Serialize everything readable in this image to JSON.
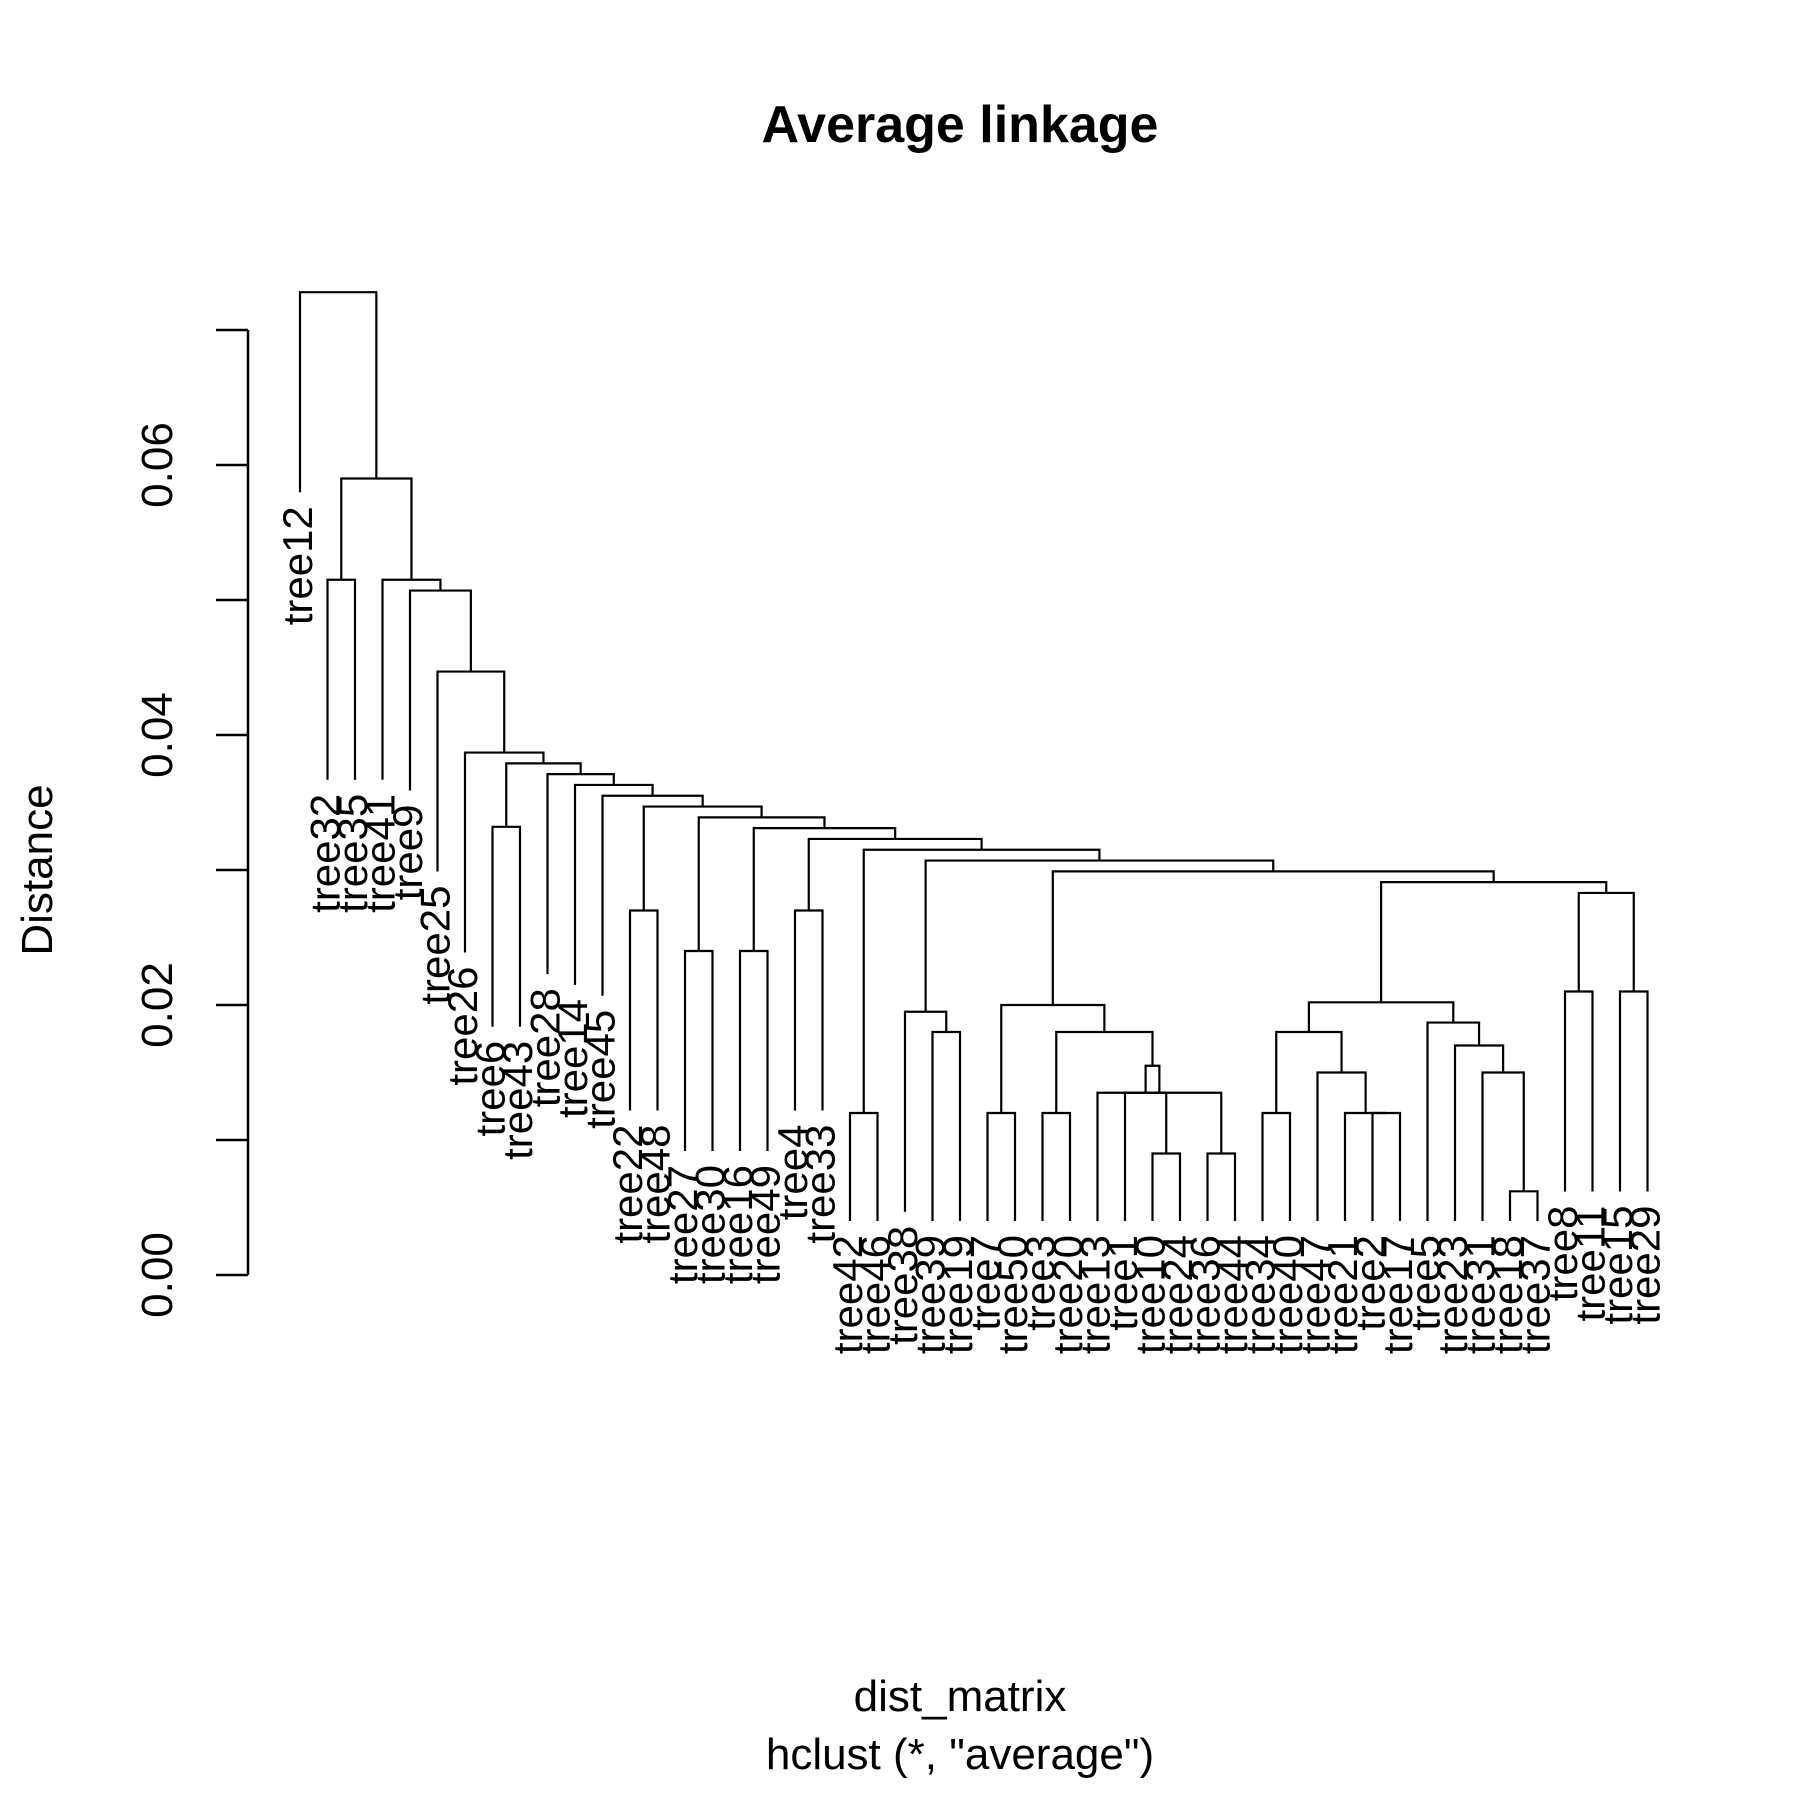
{
  "chart_data": {
    "type": "dendrogram",
    "title": "Average linkage",
    "xlabel": "dist_matrix",
    "sublabel": "hclust (*, \"average\")",
    "ylabel": "Distance",
    "ylim": [
      0,
      0.072
    ],
    "y_ticks": [
      0.0,
      0.01,
      0.02,
      0.03,
      0.04,
      0.05,
      0.06,
      0.07
    ],
    "y_tick_labels": [
      {
        "value": 0.0,
        "label": "0.00"
      },
      {
        "value": 0.02,
        "label": "0.02"
      },
      {
        "value": 0.04,
        "label": "0.04"
      },
      {
        "value": 0.06,
        "label": "0.06"
      }
    ],
    "leaf_order": [
      "tree12",
      "tree32",
      "tree35",
      "tree41",
      "tree9",
      "tree25",
      "tree26",
      "tree6",
      "tree43",
      "tree28",
      "tree14",
      "tree45",
      "tree22",
      "tree48",
      "tree27",
      "tree30",
      "tree16",
      "tree49",
      "tree4",
      "tree33",
      "tree42",
      "tree46",
      "tree38",
      "tree39",
      "tree19",
      "tree7",
      "tree50",
      "tree3",
      "tree20",
      "tree13",
      "tree1",
      "tree10",
      "tree24",
      "tree36",
      "tree44",
      "tree34",
      "tree40",
      "tree47",
      "tree21",
      "tree2",
      "tree17",
      "tree5",
      "tree23",
      "tree31",
      "tree18",
      "tree37",
      "tree8",
      "tree11",
      "tree15",
      "tree29"
    ],
    "merges": [
      {
        "a": "tree18",
        "b": "tree37",
        "height": 0.0062
      },
      {
        "a": "tree10",
        "b": "tree24",
        "height": 0.009
      },
      {
        "a": "tree36",
        "b": "tree44",
        "height": 0.009
      },
      {
        "a": "tree42",
        "b": "tree46",
        "height": 0.012
      },
      {
        "a": "tree7",
        "b": "tree50",
        "height": 0.012
      },
      {
        "a": "tree3",
        "b": "tree20",
        "height": 0.012
      },
      {
        "a": "tree34",
        "b": "tree40",
        "height": 0.012
      },
      {
        "a": "tree2",
        "b": "tree17",
        "height": 0.012
      },
      {
        "a": "tree21",
        "b": [
          "tree2",
          "tree17"
        ],
        "height": 0.012
      },
      {
        "a": "tree1",
        "b": [
          "tree10",
          "tree24"
        ],
        "height": 0.0135
      },
      {
        "a": "tree13",
        "b": [
          "tree36",
          "tree44"
        ],
        "height": 0.0135
      },
      {
        "a": "tree47",
        "b": [
          "tree21",
          "tree2",
          "tree17"
        ],
        "height": 0.015
      },
      {
        "a": "tree31",
        "b": [
          "tree18",
          "tree37"
        ],
        "height": 0.015
      },
      {
        "a": [
          "tree13",
          "tree36",
          "tree44"
        ],
        "b": [
          "tree1",
          "tree10",
          "tree24"
        ],
        "height": 0.0155
      },
      {
        "a": "tree23",
        "b": [
          "tree31",
          "tree18",
          "tree37"
        ],
        "height": 0.017
      },
      {
        "a": "tree39",
        "b": "tree19",
        "height": 0.018
      },
      {
        "a": [
          "tree3",
          "tree20"
        ],
        "b": [
          "tree13",
          "tree36",
          "tree44",
          "tree1",
          "tree10",
          "tree24"
        ],
        "height": 0.018
      },
      {
        "a": [
          "tree34",
          "tree40"
        ],
        "b": [
          "tree47",
          "tree21",
          "tree2",
          "tree17"
        ],
        "height": 0.018
      },
      {
        "a": "tree5",
        "b": [
          "tree23",
          "tree31",
          "tree18",
          "tree37"
        ],
        "height": 0.0187
      },
      {
        "a": "tree38",
        "b": [
          "tree39",
          "tree19"
        ],
        "height": 0.0195
      },
      {
        "a": [
          "tree7",
          "tree50"
        ],
        "b": [
          "tree3",
          "tree20",
          "tree13",
          "tree36",
          "tree44",
          "tree1",
          "tree10",
          "tree24"
        ],
        "height": 0.02
      },
      {
        "a": [
          "tree34",
          "tree40",
          "tree47",
          "tree21",
          "tree2",
          "tree17"
        ],
        "b": [
          "tree5",
          "tree23",
          "tree31",
          "tree18",
          "tree37"
        ],
        "height": 0.0202
      },
      {
        "a": "tree8",
        "b": "tree11",
        "height": 0.021
      },
      {
        "a": "tree15",
        "b": "tree29",
        "height": 0.021
      },
      {
        "a": "tree27",
        "b": "tree30",
        "height": 0.024
      },
      {
        "a": "tree16",
        "b": "tree49",
        "height": 0.024
      },
      {
        "a": "tree22",
        "b": "tree48",
        "height": 0.027
      },
      {
        "a": "tree4",
        "b": "tree33",
        "height": 0.027
      },
      {
        "a": "tree6",
        "b": "tree43",
        "height": 0.0332
      },
      {
        "a": "tree32",
        "b": "tree35",
        "height": 0.0515
      }
    ],
    "max_height": 0.0728,
    "grid": false,
    "legend": "none"
  }
}
